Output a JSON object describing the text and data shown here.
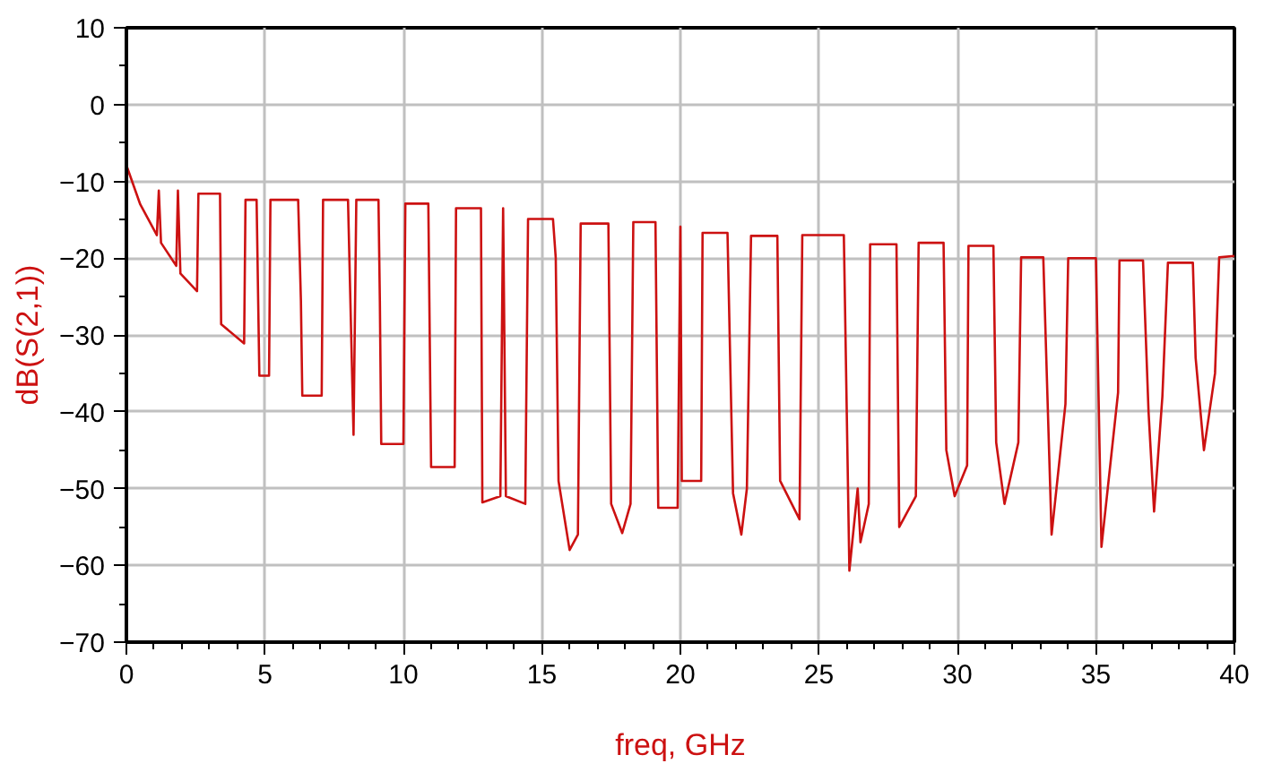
{
  "chart_data": {
    "type": "line",
    "xlabel": "freq, GHz",
    "ylabel": "dB(S(2,1))",
    "xlim": [
      0,
      40
    ],
    "xticks": [
      0,
      5,
      10,
      15,
      20,
      25,
      30,
      35,
      40
    ],
    "ylim": [
      -70,
      10
    ],
    "yticks": [
      -70,
      -60,
      -50,
      -40,
      -30,
      -20,
      -10,
      0,
      10
    ],
    "grid": true,
    "line_style": "solid",
    "series": [
      {
        "color": "#cc1111",
        "x": [
          0,
          0.5,
          1.1,
          1.17,
          1.25,
          1.8,
          1.86,
          1.95,
          2.55,
          2.6,
          3.38,
          3.42,
          4.25,
          4.3,
          4.7,
          4.8,
          5.15,
          5.2,
          6.2,
          6.3,
          6.35,
          7.05,
          7.1,
          8.0,
          8.2,
          8.3,
          9.1,
          9.15,
          9.2,
          10.0,
          10.07,
          10.9,
          11.0,
          11.85,
          11.9,
          12.8,
          12.85,
          13.5,
          13.6,
          13.7,
          14.4,
          14.5,
          15.4,
          15.5,
          15.6,
          16.0,
          16.3,
          16.4,
          17.4,
          17.5,
          17.9,
          18.2,
          18.3,
          19.1,
          19.2,
          19.9,
          20.0,
          20.05,
          20.75,
          20.8,
          21.7,
          21.9,
          22.2,
          22.4,
          22.55,
          23.5,
          23.6,
          24.3,
          24.4,
          25.9,
          26.1,
          26.4,
          26.5,
          26.8,
          26.85,
          27.8,
          27.9,
          28.5,
          28.6,
          29.5,
          29.6,
          29.9,
          30.35,
          30.4,
          31.3,
          31.4,
          31.7,
          32.2,
          32.3,
          33.1,
          33.4,
          33.9,
          34.0,
          35.0,
          35.2,
          35.8,
          35.85,
          36.7,
          36.9,
          37.1,
          37.4,
          37.6,
          38.5,
          38.6,
          38.9,
          39.3,
          39.45,
          40
        ],
        "values": [
          -7.9,
          -13,
          -17,
          -11.2,
          -18,
          -21,
          -11.2,
          -22,
          -24.3,
          -11.6,
          -11.6,
          -28.6,
          -31.1,
          -12.4,
          -12.4,
          -35.3,
          -35.3,
          -12.4,
          -12.4,
          -25.5,
          -37.9,
          -37.9,
          -12.4,
          -12.4,
          -43,
          -12.4,
          -12.4,
          -25.5,
          -44.2,
          -44.2,
          -12.9,
          -12.9,
          -47.2,
          -47.2,
          -13.5,
          -13.5,
          -51.8,
          -51,
          -13.5,
          -51,
          -52,
          -14.9,
          -14.9,
          -20,
          -49,
          -58,
          -56,
          -15.5,
          -15.5,
          -52,
          -55.8,
          -52,
          -15.3,
          -15.3,
          -52.5,
          -52.5,
          -15.9,
          -49,
          -49,
          -16.7,
          -16.7,
          -50.6,
          -56,
          -50,
          -17.1,
          -17.1,
          -49,
          -54,
          -17,
          -17,
          -60.7,
          -50,
          -57,
          -52,
          -18.2,
          -18.2,
          -55,
          -51,
          -18,
          -18,
          -45,
          -51,
          -47,
          -18.4,
          -18.4,
          -44,
          -52,
          -44,
          -19.9,
          -19.9,
          -56,
          -39,
          -20,
          -20,
          -57.6,
          -37.5,
          -20.3,
          -20.3,
          -40,
          -53,
          -38,
          -20.6,
          -20.6,
          -33,
          -45,
          -35,
          -19.9,
          -19.7
        ]
      }
    ]
  }
}
